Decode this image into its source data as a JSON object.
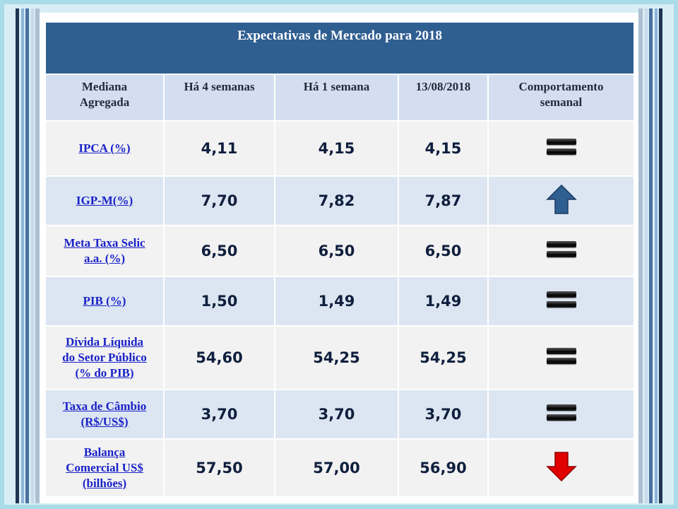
{
  "title": "Expectativas de Mercado para 2018",
  "headers": [
    "Mediana Agregada",
    "Há 4 semanas",
    "Há 1 semana",
    "13/08/2018",
    "Comportamento semanal"
  ],
  "header_lines": [
    [
      "Mediana",
      "Agregada"
    ],
    [
      "Há 4 semanas"
    ],
    [
      "Há 1 semana"
    ],
    [
      "13/08/2018"
    ],
    [
      "Comportamento",
      "semanal"
    ]
  ],
  "rows": [
    {
      "label_lines": [
        "IPCA (%)"
      ],
      "v4": "4,11",
      "v1": "4,15",
      "vd": "4,15",
      "trend": "equal",
      "trend_icon": "equals-icon"
    },
    {
      "label_lines": [
        "IGP-M(%)"
      ],
      "v4": "7,70",
      "v1": "7,82",
      "vd": "7,87",
      "trend": "up",
      "trend_icon": "arrow-up-icon"
    },
    {
      "label_lines": [
        "Meta Taxa Selic",
        "a.a. (%)"
      ],
      "v4": "6,50",
      "v1": "6,50",
      "vd": "6,50",
      "trend": "equal",
      "trend_icon": "equals-icon"
    },
    {
      "label_lines": [
        "PIB (%)"
      ],
      "v4": "1,50",
      "v1": "1,49",
      "vd": "1,49",
      "trend": "equal",
      "trend_icon": "equals-icon"
    },
    {
      "label_lines": [
        "Dívida Líquida",
        "do Setor Público",
        "(% do PIB)"
      ],
      "v4": "54,60",
      "v1": "54,25",
      "vd": "54,25",
      "trend": "equal",
      "trend_icon": "equals-icon"
    },
    {
      "label_lines": [
        "Taxa de Câmbio",
        "(R$/US$)"
      ],
      "v4": "3,70",
      "v1": "3,70",
      "vd": "3,70",
      "trend": "equal",
      "trend_icon": "equals-icon"
    },
    {
      "label_lines": [
        "Balança",
        "Comercial US$",
        "(bilhões)"
      ],
      "v4": "57,50",
      "v1": "57,00",
      "vd": "56,90",
      "trend": "down",
      "trend_icon": "arrow-down-icon"
    }
  ],
  "colors": {
    "title_bg": "#2f5e91",
    "header_bg": "#d3dff0",
    "row_light": "#f2f2f2",
    "row_blue": "#dce6f2",
    "link": "#1a22c8",
    "up_arrow": "#2f5e91",
    "down_arrow": "#e00000"
  }
}
